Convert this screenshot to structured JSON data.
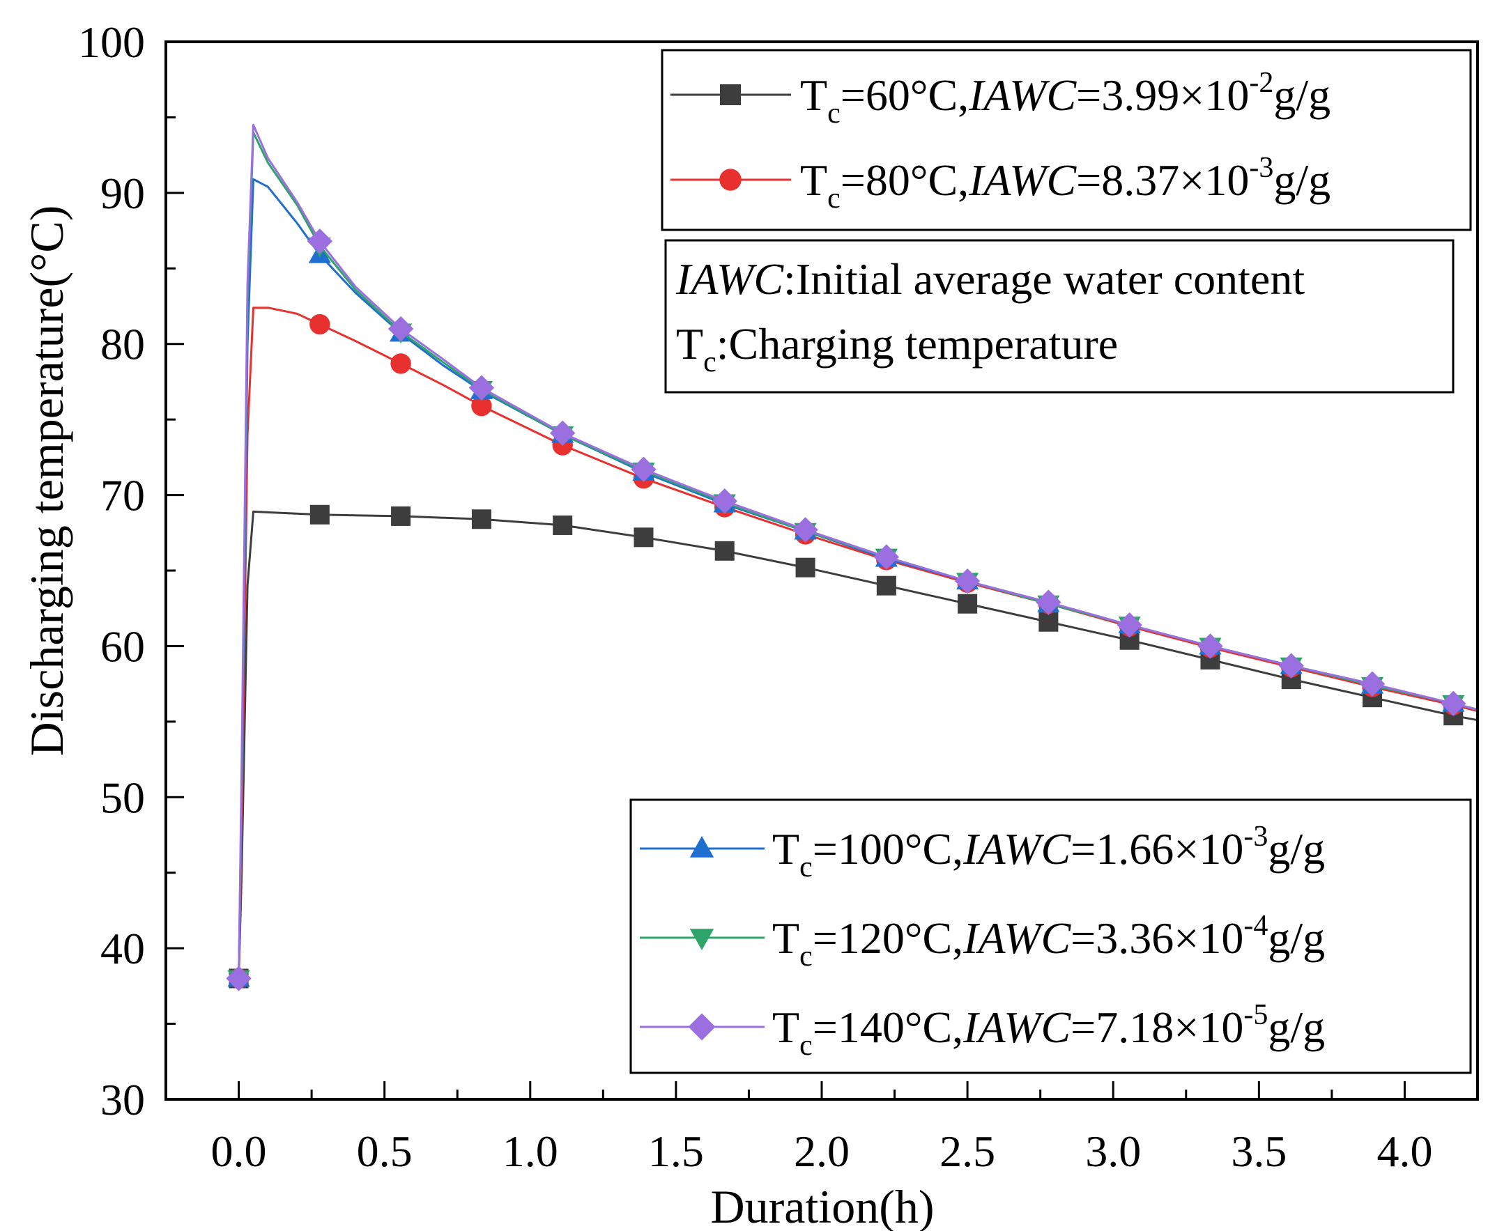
{
  "chart_data": {
    "type": "line",
    "xlabel": "Duration(h)",
    "ylabel": "Discharging temperature(°C)",
    "xlim": [
      -0.25,
      4.25
    ],
    "ylim": [
      30,
      100
    ],
    "xticks": [
      0.0,
      0.5,
      1.0,
      1.5,
      2.0,
      2.5,
      3.0,
      3.5,
      4.0
    ],
    "xtick_labels": [
      "0.0",
      "0.5",
      "1.0",
      "1.5",
      "2.0",
      "2.5",
      "3.0",
      "3.5",
      "4.0"
    ],
    "yticks": [
      30,
      40,
      50,
      60,
      70,
      80,
      90,
      100
    ],
    "ytick_labels": [
      "30",
      "40",
      "50",
      "60",
      "70",
      "80",
      "90",
      "100"
    ],
    "grid": false,
    "legends": [
      {
        "placement": "top-right",
        "series_index": [
          0,
          1
        ]
      },
      {
        "placement": "bottom-right",
        "series_index": [
          2,
          3,
          4
        ]
      }
    ],
    "note": {
      "placement": "top-right",
      "line1_italic": "IAWC",
      "line1_rest": ":Initial average water content",
      "line2_main": "T",
      "line2_sub": "c",
      "line2_rest": ":Charging temperature"
    },
    "series": [
      {
        "name": "Tc=60°C,IAWC=3.99×10^-2g/g",
        "legend": {
          "main": "T",
          "sub": "c",
          "mid": "=60°C,",
          "ital": "IAWC",
          "val": "=3.99×10",
          "exp": "-2",
          "unit": "g/g"
        },
        "color": "#3d3d3d",
        "marker": "square",
        "x": [
          0,
          0.01,
          0.03,
          0.05,
          0.278,
          0.556,
          0.833,
          1.111,
          1.389,
          1.667,
          1.944,
          2.222,
          2.5,
          2.778,
          3.056,
          3.333,
          3.611,
          3.889,
          4.167,
          4.25
        ],
        "y": [
          38.0,
          45,
          64,
          68.9,
          68.7,
          68.6,
          68.4,
          68.0,
          67.2,
          66.3,
          65.2,
          64.0,
          62.8,
          61.6,
          60.4,
          59.1,
          57.8,
          56.6,
          55.4,
          55.1
        ],
        "markers_x": [
          0,
          0.278,
          0.556,
          0.833,
          1.111,
          1.389,
          1.667,
          1.944,
          2.222,
          2.5,
          2.778,
          3.056,
          3.333,
          3.611,
          3.889,
          4.167
        ],
        "markers_y": [
          38.0,
          68.7,
          68.6,
          68.4,
          68.0,
          67.2,
          66.3,
          65.2,
          64.0,
          62.8,
          61.6,
          60.4,
          59.1,
          57.8,
          56.6,
          55.4
        ]
      },
      {
        "name": "Tc=80°C,IAWC=8.37×10^-3g/g",
        "legend": {
          "main": "T",
          "sub": "c",
          "mid": "=80°C,",
          "ital": "IAWC",
          "val": "=8.37×10",
          "exp": "-3",
          "unit": "g/g"
        },
        "color": "#e8312f",
        "marker": "circle",
        "x": [
          0,
          0.01,
          0.03,
          0.05,
          0.1,
          0.2,
          0.278,
          0.4,
          0.556,
          0.7,
          0.833,
          1.111,
          1.389,
          1.667,
          1.944,
          2.222,
          2.5,
          2.778,
          3.056,
          3.333,
          3.611,
          3.889,
          4.167,
          4.25
        ],
        "y": [
          38.0,
          48,
          74,
          82.4,
          82.4,
          82.0,
          81.3,
          80.2,
          78.7,
          77.3,
          75.9,
          73.3,
          71.1,
          69.2,
          67.4,
          65.7,
          64.2,
          62.8,
          61.3,
          59.9,
          58.6,
          57.3,
          56.1,
          55.7
        ],
        "markers_x": [
          0,
          0.278,
          0.556,
          0.833,
          1.111,
          1.389,
          1.667,
          1.944,
          2.222,
          2.5,
          2.778,
          3.056,
          3.333,
          3.611,
          3.889,
          4.167
        ],
        "markers_y": [
          38.0,
          81.3,
          78.7,
          75.9,
          73.3,
          71.1,
          69.2,
          67.4,
          65.7,
          64.2,
          62.8,
          61.3,
          59.9,
          58.6,
          57.3,
          56.1
        ]
      },
      {
        "name": "Tc=100°C,IAWC=1.66×10^-3g/g",
        "legend": {
          "main": "T",
          "sub": "c",
          "mid": "=100°C,",
          "ital": "IAWC",
          "val": "=1.66×10",
          "exp": "-3",
          "unit": "g/g"
        },
        "color": "#1f6fd1",
        "marker": "triangle-up",
        "x": [
          0,
          0.01,
          0.03,
          0.05,
          0.1,
          0.2,
          0.278,
          0.4,
          0.556,
          0.7,
          0.833,
          1.111,
          1.389,
          1.667,
          1.944,
          2.222,
          2.5,
          2.778,
          3.056,
          3.333,
          3.611,
          3.889,
          4.167,
          4.25
        ],
        "y": [
          38.0,
          50,
          80,
          90.9,
          90.4,
          88.0,
          85.9,
          83.4,
          80.7,
          78.6,
          76.9,
          74.0,
          71.5,
          69.4,
          67.6,
          65.8,
          64.3,
          62.8,
          61.4,
          60.0,
          58.7,
          57.4,
          56.2,
          55.8
        ],
        "markers_x": [
          0,
          0.278,
          0.556,
          0.833,
          1.111,
          1.389,
          1.667,
          1.944,
          2.222,
          2.5,
          2.778,
          3.056,
          3.333,
          3.611,
          3.889,
          4.167
        ],
        "markers_y": [
          38.0,
          85.9,
          80.7,
          76.9,
          74.0,
          71.5,
          69.4,
          67.6,
          65.8,
          64.3,
          62.8,
          61.4,
          60.0,
          58.7,
          57.4,
          56.2
        ]
      },
      {
        "name": "Tc=120°C,IAWC=3.36×10^-4g/g",
        "legend": {
          "main": "T",
          "sub": "c",
          "mid": "=120°C,",
          "ital": "IAWC",
          "val": "=3.36×10",
          "exp": "-4",
          "unit": "g/g"
        },
        "color": "#2ea36a",
        "marker": "triangle-down",
        "x": [
          0,
          0.01,
          0.03,
          0.05,
          0.1,
          0.2,
          0.278,
          0.4,
          0.556,
          0.7,
          0.833,
          1.111,
          1.389,
          1.667,
          1.944,
          2.222,
          2.5,
          2.778,
          3.056,
          3.333,
          3.611,
          3.889,
          4.167,
          4.25
        ],
        "y": [
          38.0,
          51,
          83,
          94.0,
          92.0,
          89.2,
          86.5,
          83.6,
          80.8,
          78.8,
          77.0,
          74.0,
          71.6,
          69.5,
          67.6,
          65.9,
          64.3,
          62.8,
          61.4,
          60.0,
          58.7,
          57.4,
          56.2,
          55.8
        ],
        "markers_x": [
          0,
          0.278,
          0.556,
          0.833,
          1.111,
          1.389,
          1.667,
          1.944,
          2.222,
          2.5,
          2.778,
          3.056,
          3.333,
          3.611,
          3.889,
          4.167
        ],
        "markers_y": [
          38.0,
          86.5,
          80.8,
          77.0,
          74.0,
          71.6,
          69.5,
          67.6,
          65.9,
          64.3,
          62.8,
          61.4,
          60.0,
          58.7,
          57.4,
          56.2
        ]
      },
      {
        "name": "Tc=140°C,IAWC=7.18×10^-5g/g",
        "legend": {
          "main": "T",
          "sub": "c",
          "mid": "=140°C,",
          "ital": "IAWC",
          "val": "=7.18×10",
          "exp": "-5",
          "unit": "g/g"
        },
        "color": "#9b6fe0",
        "marker": "diamond",
        "x": [
          0,
          0.01,
          0.03,
          0.05,
          0.1,
          0.2,
          0.278,
          0.4,
          0.556,
          0.7,
          0.833,
          1.111,
          1.389,
          1.667,
          1.944,
          2.222,
          2.5,
          2.778,
          3.056,
          3.333,
          3.611,
          3.889,
          4.167,
          4.25
        ],
        "y": [
          38.0,
          52,
          84,
          94.5,
          92.3,
          89.4,
          86.8,
          83.8,
          81.0,
          79.0,
          77.1,
          74.1,
          71.7,
          69.6,
          67.7,
          65.9,
          64.3,
          62.9,
          61.4,
          60.0,
          58.7,
          57.5,
          56.2,
          55.8
        ],
        "markers_x": [
          0,
          0.278,
          0.556,
          0.833,
          1.111,
          1.389,
          1.667,
          1.944,
          2.222,
          2.5,
          2.778,
          3.056,
          3.333,
          3.611,
          3.889,
          4.167
        ],
        "markers_y": [
          38.0,
          86.8,
          81.0,
          77.1,
          74.1,
          71.7,
          69.6,
          67.7,
          65.9,
          64.3,
          62.9,
          61.4,
          60.0,
          58.7,
          57.5,
          56.2
        ]
      }
    ]
  }
}
